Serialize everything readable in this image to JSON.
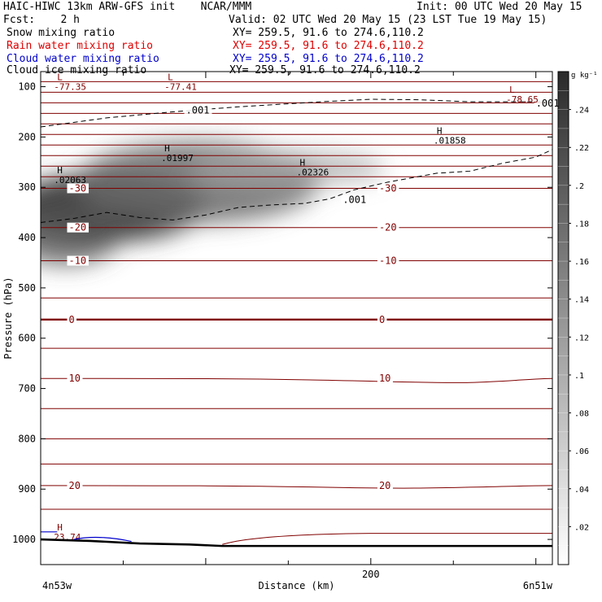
{
  "header": {
    "left1": "HAIC-HIWC 13km ARW-GFS init    NCAR/MMM",
    "right1": "Init: 00 UTC Wed 20 May 15",
    "fcst": "Fcst:    2 h",
    "valid": "Valid: 02 UTC Wed 20 May 15 (23 LST Tue 19 May 15)",
    "fields": [
      {
        "name": "Snow mixing ratio",
        "xy": "XY= 259.5, 91.6 to 274.6,110.2",
        "color": "#000000"
      },
      {
        "name": "Rain water mixing ratio",
        "xy": "XY= 259.5, 91.6 to 274.6,110.2",
        "color": "#e00000"
      },
      {
        "name": "Cloud water mixing ratio",
        "xy": "XY= 259.5, 91.6 to 274.6,110.2",
        "color": "#0000cc"
      },
      {
        "name": "Cloud ice mixing ratio",
        "xy": "XY= 259.5, 91.6 to 274.6,110.2",
        "color": "#000000"
      }
    ]
  },
  "chart_data": {
    "type": "heatmap",
    "title": "",
    "xlabel": "Distance (km)",
    "ylabel": "Pressure (hPa)",
    "x_ticks": [
      200
    ],
    "x_end_labels": [
      "4n53w",
      "6n51w"
    ],
    "xlim": [
      0,
      310
    ],
    "ylim": [
      1050,
      70
    ],
    "y_ticks": [
      100,
      200,
      300,
      400,
      500,
      600,
      700,
      800,
      900,
      1000
    ],
    "colorbar": {
      "unit": "g kg⁻¹",
      "ticks": [
        ".02",
        ".04",
        ".06",
        ".08",
        ".1",
        ".12",
        ".14",
        ".16",
        ".18",
        ".2",
        ".22",
        ".24"
      ],
      "range": [
        0,
        0.26
      ]
    },
    "temperature_contours": [
      {
        "label": "-30",
        "p": 302
      },
      {
        "label": "-20",
        "p": 380
      },
      {
        "label": "-10",
        "p": 446
      },
      {
        "label": "0",
        "p": 563
      },
      {
        "label": "10",
        "p": 680
      },
      {
        "label": "20",
        "p": 893
      }
    ],
    "isotherm_count_above": 10,
    "ice_contour_label": ".001",
    "extrema": [
      {
        "label": "L",
        "value": "-77.35",
        "x": 8,
        "p": 90
      },
      {
        "label": "L",
        "value": "-77.41",
        "x": 75,
        "p": 90
      },
      {
        "label": "L",
        "value": "-78.65",
        "x": 282,
        "p": 115
      },
      {
        "label": "H",
        "value": ".02063",
        "x": 8,
        "p": 275
      },
      {
        "label": "H",
        "value": ".01997",
        "x": 73,
        "p": 232
      },
      {
        "label": "H",
        "value": ".02326",
        "x": 155,
        "p": 260
      },
      {
        "label": "H",
        "value": ".01858",
        "x": 238,
        "p": 197
      },
      {
        "label": "H",
        "value": "23.74",
        "x": 8,
        "p": 985
      }
    ]
  }
}
